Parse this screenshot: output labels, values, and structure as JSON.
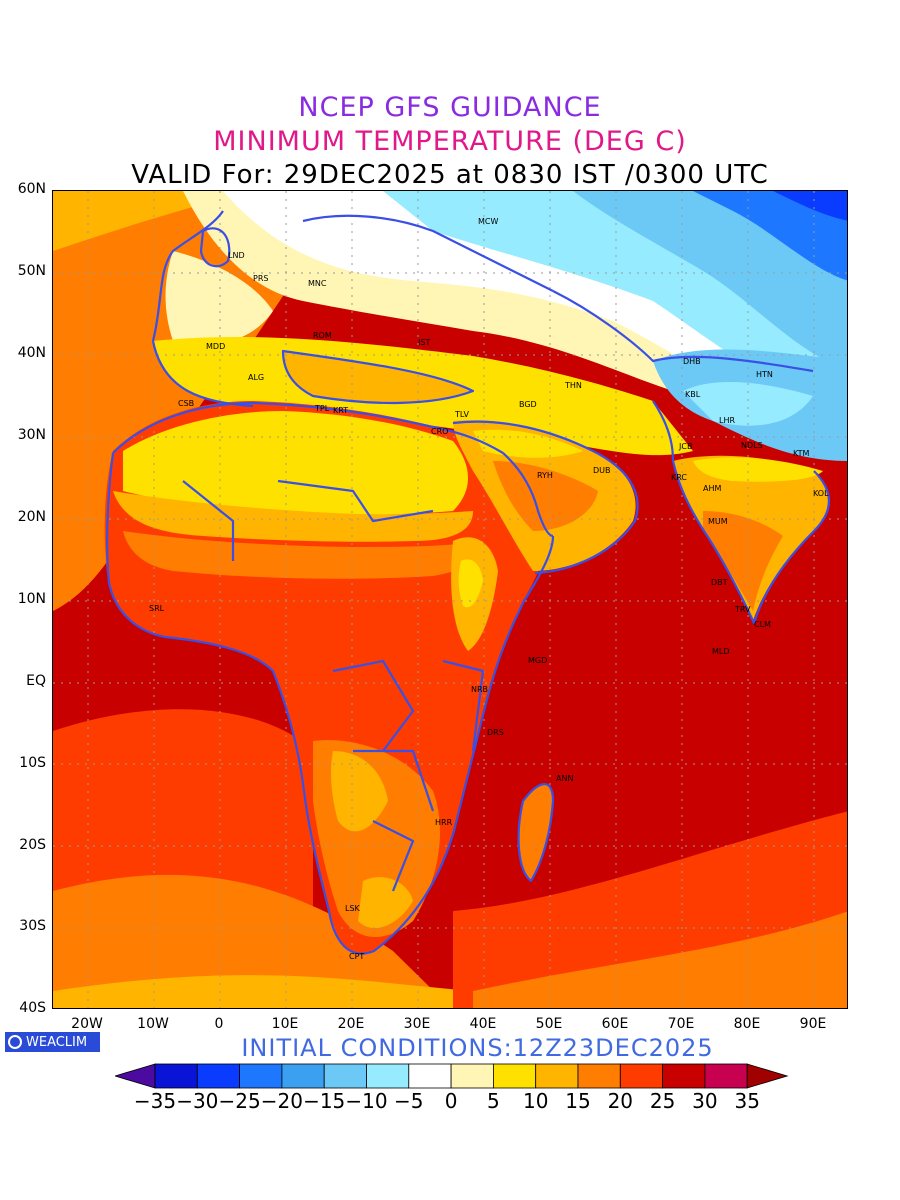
{
  "title": {
    "line1": "NCEP GFS GUIDANCE",
    "line2": "MINIMUM TEMPERATURE (DEG C)",
    "line3": "VALID For: 29DEC2025 at 0830 IST /0300 UTC"
  },
  "axes": {
    "lat_labels": [
      "60N",
      "50N",
      "40N",
      "30N",
      "20N",
      "10N",
      "EQ",
      "10S",
      "20S",
      "30S",
      "40S"
    ],
    "lon_labels": [
      "20W",
      "10W",
      "0",
      "10E",
      "20E",
      "30E",
      "40E",
      "50E",
      "60E",
      "70E",
      "80E",
      "90E"
    ]
  },
  "cities": [
    {
      "code": "MCW"
    },
    {
      "code": "LND"
    },
    {
      "code": "PRS"
    },
    {
      "code": "MNC"
    },
    {
      "code": "MDD"
    },
    {
      "code": "ROM"
    },
    {
      "code": "IST"
    },
    {
      "code": "ALG"
    },
    {
      "code": "CSB"
    },
    {
      "code": "TPL"
    },
    {
      "code": "KRT"
    },
    {
      "code": "TLV"
    },
    {
      "code": "CRO"
    },
    {
      "code": "BGD"
    },
    {
      "code": "THN"
    },
    {
      "code": "DHB"
    },
    {
      "code": "HTN"
    },
    {
      "code": "KBL"
    },
    {
      "code": "LHR"
    },
    {
      "code": "JCB"
    },
    {
      "code": "NDLS"
    },
    {
      "code": "KTM"
    },
    {
      "code": "RYH"
    },
    {
      "code": "DUB"
    },
    {
      "code": "KRC"
    },
    {
      "code": "AHM"
    },
    {
      "code": "KOL"
    },
    {
      "code": "MUM"
    },
    {
      "code": "DBT"
    },
    {
      "code": "SRL"
    },
    {
      "code": "TRV"
    },
    {
      "code": "CLM"
    },
    {
      "code": "MLD"
    },
    {
      "code": "MGD"
    },
    {
      "code": "NRB"
    },
    {
      "code": "DRS"
    },
    {
      "code": "ANN"
    },
    {
      "code": "HRR"
    },
    {
      "code": "LSK"
    },
    {
      "code": "CPT"
    }
  ],
  "logo": {
    "text": "WEACLIM"
  },
  "initial_conditions": "INITIAL CONDITIONS:12Z23DEC2025",
  "colorbar": {
    "labels": [
      "-35",
      "-30",
      "-25",
      "-20",
      "-15",
      "-10",
      "-5",
      "0",
      "5",
      "10",
      "15",
      "20",
      "25",
      "30",
      "35"
    ],
    "colors": [
      "#4b0ba0",
      "#0a14d6",
      "#0a3cff",
      "#1e78ff",
      "#3ca0f0",
      "#6cc8f5",
      "#96ebff",
      "#ffffff",
      "#fff5b4",
      "#ffe100",
      "#ffb400",
      "#ff7d00",
      "#ff3c00",
      "#c80000",
      "#c80050",
      "#a00000"
    ]
  },
  "colors": {
    "coast": "#3a4fe6",
    "ocean_warm": "#c80000",
    "land_hot": "#ff3c00"
  }
}
